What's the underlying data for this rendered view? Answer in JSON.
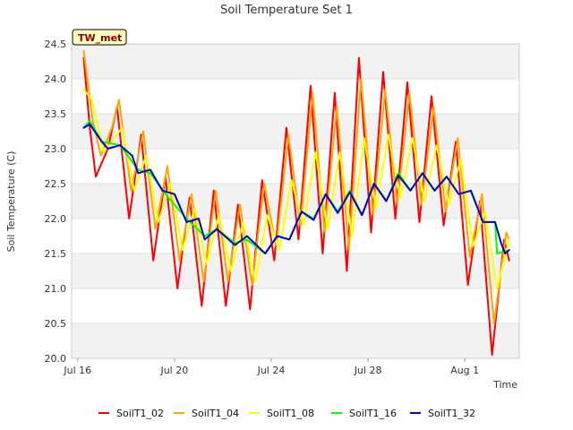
{
  "chart_data": {
    "type": "line",
    "title": "Soil Temperature Set 1",
    "xlabel": "Time",
    "ylabel": "Soil Temperature (C)",
    "tag": "TW_met",
    "ylim": [
      20.0,
      24.5
    ],
    "xlim": [
      "2023-07-15T18:00",
      "2023-08-03T06:00"
    ],
    "yticks": [
      "20.0",
      "20.5",
      "21.0",
      "21.5",
      "22.0",
      "22.5",
      "23.0",
      "23.5",
      "24.0",
      "24.5"
    ],
    "xticks": [
      {
        "date": "2023-07-16",
        "label": "Jul 16"
      },
      {
        "date": "2023-07-20",
        "label": "Jul 20"
      },
      {
        "date": "2023-07-24",
        "label": "Jul 24"
      },
      {
        "date": "2023-07-28",
        "label": "Jul 28"
      },
      {
        "date": "2023-08-01",
        "label": "Aug 1"
      }
    ],
    "grid": true,
    "legend_position": "bottom",
    "series": [
      {
        "name": "SoilT1_02",
        "color": "#ff0000",
        "points": [
          [
            "2023-07-16T06:00",
            24.3
          ],
          [
            "2023-07-16T12:00",
            23.3
          ],
          [
            "2023-07-16T18:00",
            22.6
          ],
          [
            "2023-07-17T06:00",
            23.0
          ],
          [
            "2023-07-17T15:00",
            23.6
          ],
          [
            "2023-07-18T03:00",
            22.0
          ],
          [
            "2023-07-18T15:00",
            23.2
          ],
          [
            "2023-07-19T03:00",
            21.4
          ],
          [
            "2023-07-19T15:00",
            22.6
          ],
          [
            "2023-07-20T03:00",
            21.0
          ],
          [
            "2023-07-20T15:00",
            22.3
          ],
          [
            "2023-07-21T03:00",
            20.75
          ],
          [
            "2023-07-21T15:00",
            22.4
          ],
          [
            "2023-07-22T03:00",
            20.75
          ],
          [
            "2023-07-22T15:00",
            22.2
          ],
          [
            "2023-07-23T03:00",
            20.7
          ],
          [
            "2023-07-23T15:00",
            22.55
          ],
          [
            "2023-07-24T03:00",
            21.4
          ],
          [
            "2023-07-24T15:00",
            23.3
          ],
          [
            "2023-07-25T03:00",
            21.7
          ],
          [
            "2023-07-25T15:00",
            23.9
          ],
          [
            "2023-07-26T03:00",
            21.5
          ],
          [
            "2023-07-26T15:00",
            23.8
          ],
          [
            "2023-07-27T03:00",
            21.25
          ],
          [
            "2023-07-27T15:00",
            24.3
          ],
          [
            "2023-07-28T03:00",
            21.8
          ],
          [
            "2023-07-28T15:00",
            24.1
          ],
          [
            "2023-07-29T03:00",
            22.0
          ],
          [
            "2023-07-29T15:00",
            23.95
          ],
          [
            "2023-07-30T03:00",
            21.95
          ],
          [
            "2023-07-30T15:00",
            23.75
          ],
          [
            "2023-07-31T03:00",
            21.9
          ],
          [
            "2023-07-31T15:00",
            23.1
          ],
          [
            "2023-08-01T03:00",
            21.05
          ],
          [
            "2023-08-01T15:00",
            22.25
          ],
          [
            "2023-08-02T03:00",
            20.05
          ],
          [
            "2023-08-02T15:00",
            21.7
          ],
          [
            "2023-08-02T20:00",
            21.4
          ]
        ]
      },
      {
        "name": "SoilT1_04",
        "color": "#ffa500",
        "points": [
          [
            "2023-07-16T06:00",
            24.4
          ],
          [
            "2023-07-16T15:00",
            23.4
          ],
          [
            "2023-07-16T23:00",
            22.9
          ],
          [
            "2023-07-17T10:00",
            23.3
          ],
          [
            "2023-07-17T17:00",
            23.7
          ],
          [
            "2023-07-18T05:00",
            22.4
          ],
          [
            "2023-07-18T17:00",
            23.25
          ],
          [
            "2023-07-19T05:00",
            21.85
          ],
          [
            "2023-07-19T17:00",
            22.75
          ],
          [
            "2023-07-20T05:00",
            21.4
          ],
          [
            "2023-07-20T17:00",
            22.35
          ],
          [
            "2023-07-21T05:00",
            21.1
          ],
          [
            "2023-07-21T17:00",
            22.4
          ],
          [
            "2023-07-22T05:00",
            21.1
          ],
          [
            "2023-07-22T17:00",
            22.2
          ],
          [
            "2023-07-23T05:00",
            21.05
          ],
          [
            "2023-07-23T17:00",
            22.5
          ],
          [
            "2023-07-24T05:00",
            21.6
          ],
          [
            "2023-07-24T17:00",
            23.2
          ],
          [
            "2023-07-25T05:00",
            21.9
          ],
          [
            "2023-07-25T17:00",
            23.8
          ],
          [
            "2023-07-26T05:00",
            21.8
          ],
          [
            "2023-07-26T17:00",
            23.6
          ],
          [
            "2023-07-27T05:00",
            21.55
          ],
          [
            "2023-07-27T17:00",
            24.0
          ],
          [
            "2023-07-28T05:00",
            22.05
          ],
          [
            "2023-07-28T17:00",
            23.85
          ],
          [
            "2023-07-29T05:00",
            22.2
          ],
          [
            "2023-07-29T17:00",
            23.8
          ],
          [
            "2023-07-30T05:00",
            22.2
          ],
          [
            "2023-07-30T17:00",
            23.6
          ],
          [
            "2023-07-31T05:00",
            22.1
          ],
          [
            "2023-07-31T17:00",
            23.15
          ],
          [
            "2023-08-01T05:00",
            21.45
          ],
          [
            "2023-08-01T17:00",
            22.35
          ],
          [
            "2023-08-02T05:00",
            20.5
          ],
          [
            "2023-08-02T17:00",
            21.8
          ],
          [
            "2023-08-02T20:00",
            21.7
          ]
        ]
      },
      {
        "name": "SoilT1_08",
        "color": "#ffff00",
        "points": [
          [
            "2023-07-16T06:00",
            23.85
          ],
          [
            "2023-07-16T14:00",
            23.7
          ],
          [
            "2023-07-17T02:00",
            22.95
          ],
          [
            "2023-07-17T20:00",
            23.3
          ],
          [
            "2023-07-18T08:00",
            22.4
          ],
          [
            "2023-07-18T20:00",
            22.9
          ],
          [
            "2023-07-19T08:00",
            21.95
          ],
          [
            "2023-07-19T20:00",
            22.5
          ],
          [
            "2023-07-20T08:00",
            21.55
          ],
          [
            "2023-07-20T20:00",
            22.15
          ],
          [
            "2023-07-21T08:00",
            21.35
          ],
          [
            "2023-07-21T20:00",
            22.05
          ],
          [
            "2023-07-22T08:00",
            21.25
          ],
          [
            "2023-07-22T20:00",
            21.95
          ],
          [
            "2023-07-23T08:00",
            21.1
          ],
          [
            "2023-07-23T20:00",
            22.05
          ],
          [
            "2023-07-24T08:00",
            21.55
          ],
          [
            "2023-07-24T20:00",
            22.55
          ],
          [
            "2023-07-25T08:00",
            21.9
          ],
          [
            "2023-07-25T20:00",
            22.95
          ],
          [
            "2023-07-26T08:00",
            21.85
          ],
          [
            "2023-07-26T20:00",
            22.95
          ],
          [
            "2023-07-27T08:00",
            21.75
          ],
          [
            "2023-07-27T20:00",
            23.15
          ],
          [
            "2023-07-28T08:00",
            22.15
          ],
          [
            "2023-07-28T20:00",
            23.2
          ],
          [
            "2023-07-29T08:00",
            22.3
          ],
          [
            "2023-07-29T20:00",
            23.15
          ],
          [
            "2023-07-30T08:00",
            22.25
          ],
          [
            "2023-07-30T20:00",
            23.05
          ],
          [
            "2023-07-31T08:00",
            22.2
          ],
          [
            "2023-07-31T20:00",
            22.85
          ],
          [
            "2023-08-01T08:00",
            21.6
          ],
          [
            "2023-08-01T20:00",
            22.1
          ],
          [
            "2023-08-02T08:00",
            21.0
          ],
          [
            "2023-08-02T20:00",
            21.7
          ]
        ]
      },
      {
        "name": "SoilT1_16",
        "color": "#00ff00",
        "points": [
          [
            "2023-07-16T06:00",
            23.3
          ],
          [
            "2023-07-16T12:00",
            23.4
          ],
          [
            "2023-07-17T00:00",
            23.1
          ],
          [
            "2023-07-17T18:00",
            23.05
          ],
          [
            "2023-07-18T12:00",
            22.7
          ],
          [
            "2023-07-19T00:00",
            22.65
          ],
          [
            "2023-07-19T18:00",
            22.3
          ],
          [
            "2023-07-20T12:00",
            22.0
          ],
          [
            "2023-07-21T06:00",
            21.75
          ],
          [
            "2023-07-21T18:00",
            21.85
          ],
          [
            "2023-07-22T12:00",
            21.65
          ],
          [
            "2023-07-23T00:00",
            21.7
          ],
          [
            "2023-07-23T18:00",
            21.5
          ],
          [
            "2023-07-24T06:00",
            21.75
          ],
          [
            "2023-07-24T18:00",
            21.7
          ],
          [
            "2023-07-25T06:00",
            22.1
          ],
          [
            "2023-07-25T18:00",
            22.0
          ],
          [
            "2023-07-26T06:00",
            22.35
          ],
          [
            "2023-07-26T18:00",
            22.1
          ],
          [
            "2023-07-27T06:00",
            22.4
          ],
          [
            "2023-07-27T18:00",
            22.05
          ],
          [
            "2023-07-28T06:00",
            22.5
          ],
          [
            "2023-07-28T18:00",
            22.25
          ],
          [
            "2023-07-29T06:00",
            22.65
          ],
          [
            "2023-07-29T18:00",
            22.4
          ],
          [
            "2023-07-30T06:00",
            22.65
          ],
          [
            "2023-07-30T18:00",
            22.4
          ],
          [
            "2023-07-31T06:00",
            22.6
          ],
          [
            "2023-07-31T18:00",
            22.35
          ],
          [
            "2023-08-01T06:00",
            22.4
          ],
          [
            "2023-08-01T18:00",
            21.95
          ],
          [
            "2023-08-02T06:00",
            21.95
          ],
          [
            "2023-08-02T08:00",
            21.5
          ],
          [
            "2023-08-02T20:00",
            21.55
          ]
        ]
      },
      {
        "name": "SoilT1_32",
        "color": "#0000cd",
        "points": [
          [
            "2023-07-16T06:00",
            23.3
          ],
          [
            "2023-07-16T12:00",
            23.35
          ],
          [
            "2023-07-17T00:00",
            23.1
          ],
          [
            "2023-07-17T06:00",
            23.0
          ],
          [
            "2023-07-17T18:00",
            23.05
          ],
          [
            "2023-07-18T06:00",
            22.9
          ],
          [
            "2023-07-18T12:00",
            22.65
          ],
          [
            "2023-07-19T00:00",
            22.7
          ],
          [
            "2023-07-19T12:00",
            22.4
          ],
          [
            "2023-07-20T00:00",
            22.35
          ],
          [
            "2023-07-20T12:00",
            21.95
          ],
          [
            "2023-07-21T00:00",
            22.0
          ],
          [
            "2023-07-21T06:00",
            21.7
          ],
          [
            "2023-07-21T18:00",
            21.85
          ],
          [
            "2023-07-22T12:00",
            21.62
          ],
          [
            "2023-07-23T00:00",
            21.75
          ],
          [
            "2023-07-23T18:00",
            21.5
          ],
          [
            "2023-07-24T06:00",
            21.75
          ],
          [
            "2023-07-24T18:00",
            21.7
          ],
          [
            "2023-07-25T06:00",
            22.1
          ],
          [
            "2023-07-25T18:00",
            21.98
          ],
          [
            "2023-07-26T06:00",
            22.35
          ],
          [
            "2023-07-26T18:00",
            22.08
          ],
          [
            "2023-07-27T06:00",
            22.38
          ],
          [
            "2023-07-27T18:00",
            22.05
          ],
          [
            "2023-07-28T06:00",
            22.5
          ],
          [
            "2023-07-28T18:00",
            22.25
          ],
          [
            "2023-07-29T06:00",
            22.62
          ],
          [
            "2023-07-29T18:00",
            22.4
          ],
          [
            "2023-07-30T06:00",
            22.65
          ],
          [
            "2023-07-30T18:00",
            22.4
          ],
          [
            "2023-07-31T06:00",
            22.6
          ],
          [
            "2023-07-31T18:00",
            22.35
          ],
          [
            "2023-08-01T06:00",
            22.4
          ],
          [
            "2023-08-01T18:00",
            21.95
          ],
          [
            "2023-08-02T06:00",
            21.95
          ],
          [
            "2023-08-02T12:00",
            21.65
          ],
          [
            "2023-08-02T16:00",
            21.5
          ],
          [
            "2023-08-02T20:00",
            21.55
          ]
        ]
      }
    ]
  }
}
